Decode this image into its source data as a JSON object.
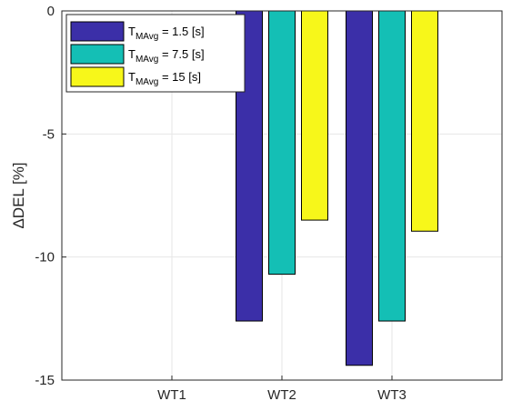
{
  "chart_data": {
    "type": "bar",
    "categories": [
      "WT1",
      "WT2",
      "WT3"
    ],
    "series": [
      {
        "name": "T_MAvg = 1.5 [s]",
        "label_main": "T",
        "label_sub": "MAvg",
        "label_rest": " = 1.5 [s]",
        "color": "#3b2fa8",
        "values": [
          0,
          -12.6,
          -14.4
        ]
      },
      {
        "name": "T_MAvg = 7.5 [s]",
        "label_main": "T",
        "label_sub": "MAvg",
        "label_rest": " = 7.5 [s]",
        "color": "#14bfb5",
        "values": [
          0,
          -10.7,
          -12.6
        ]
      },
      {
        "name": "T_MAvg = 15 [s]",
        "label_main": "T",
        "label_sub": "MAvg",
        "label_rest": " = 15 [s]",
        "color": "#f7f71a",
        "values": [
          0,
          -8.5,
          -8.95
        ]
      }
    ],
    "ylabel": "ΔDEL [%]",
    "ylim": [
      -15,
      0
    ],
    "yticks": [
      0,
      -5,
      -10,
      -15
    ],
    "ytick_labels": [
      "0",
      "-5",
      "-10",
      "-15"
    ],
    "grid": true,
    "legend_position": "top-left"
  }
}
